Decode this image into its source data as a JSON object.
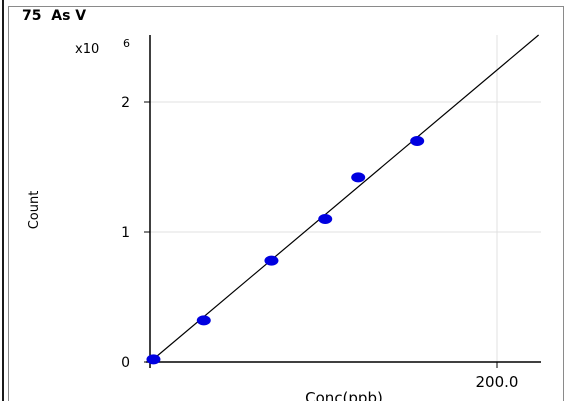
{
  "chart_data": {
    "type": "scatter",
    "title": "75  As V",
    "xlabel": "Conc(ppb)",
    "ylabel": "Count",
    "y_multiplier_label": "x10",
    "y_multiplier_exponent": "6",
    "xlim": [
      0,
      230
    ],
    "ylim": [
      -0.05,
      2.55
    ],
    "x_ticks": [
      {
        "value": 200,
        "label": "200.0"
      }
    ],
    "y_ticks": [
      {
        "value": 0,
        "label": "0"
      },
      {
        "value": 1,
        "label": "1"
      },
      {
        "value": 2,
        "label": "2"
      }
    ],
    "grid": true,
    "points": [
      {
        "x": 2,
        "y": 0.02
      },
      {
        "x": 31,
        "y": 0.32
      },
      {
        "x": 70,
        "y": 0.78
      },
      {
        "x": 101,
        "y": 1.1
      },
      {
        "x": 120,
        "y": 1.42
      },
      {
        "x": 154,
        "y": 1.7
      }
    ],
    "fit_line": {
      "slope": 0.01123,
      "intercept": 0.0
    },
    "colors": {
      "points": "#0000e0",
      "fit_line": "#000000",
      "grid": "#e0e0e0",
      "axis": "#000000"
    }
  }
}
